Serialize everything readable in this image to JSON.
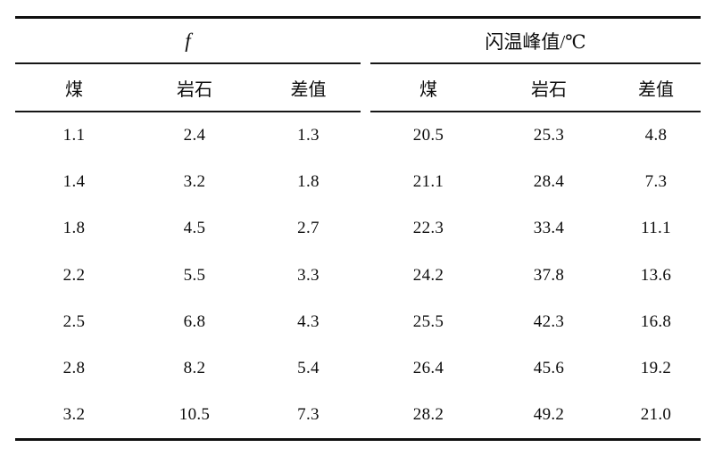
{
  "chart_data": {
    "type": "table",
    "group_headers": [
      {
        "label": "f",
        "columns": [
          "煤",
          "岩石",
          "差值"
        ]
      },
      {
        "label": "闪温峰值/℃",
        "columns": [
          "煤",
          "岩石",
          "差值"
        ]
      }
    ],
    "column_headers": [
      "煤",
      "岩石",
      "差值",
      "煤",
      "岩石",
      "差值"
    ],
    "rows": [
      [
        "1.1",
        "2.4",
        "1.3",
        "20.5",
        "25.3",
        "4.8"
      ],
      [
        "1.4",
        "3.2",
        "1.8",
        "21.1",
        "28.4",
        "7.3"
      ],
      [
        "1.8",
        "4.5",
        "2.7",
        "22.3",
        "33.4",
        "11.1"
      ],
      [
        "2.2",
        "5.5",
        "3.3",
        "24.2",
        "37.8",
        "13.6"
      ],
      [
        "2.5",
        "6.8",
        "4.3",
        "25.5",
        "42.3",
        "16.8"
      ],
      [
        "2.8",
        "8.2",
        "5.4",
        "26.4",
        "45.6",
        "19.2"
      ],
      [
        "3.2",
        "10.5",
        "7.3",
        "28.2",
        "49.2",
        "21.0"
      ]
    ],
    "style": {
      "text_color": "#0d0d0d",
      "rule_color": "#101010",
      "background": "#ffffff"
    }
  }
}
